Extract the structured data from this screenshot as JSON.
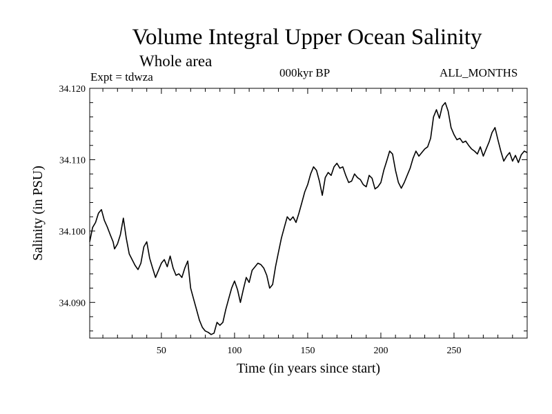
{
  "header": {
    "title": "Volume Integral Upper Ocean Salinity",
    "subtitle": "Whole area",
    "expt": "Expt = tdwza",
    "period": "000kyr BP",
    "months": "ALL_MONTHS"
  },
  "chart_data": {
    "type": "line",
    "title": "Volume Integral Upper Ocean Salinity",
    "subtitle": "Whole area",
    "xlabel": "Time (in years since start)",
    "ylabel": "Salinity (in PSU)",
    "xlim": [
      1,
      300
    ],
    "ylim": [
      34.085,
      34.12
    ],
    "xticks": [
      50,
      100,
      150,
      200,
      250
    ],
    "xtick_labels": [
      "50",
      "100",
      "150",
      "200",
      "250"
    ],
    "yticks": [
      34.09,
      34.1,
      34.11,
      34.12
    ],
    "ytick_labels": [
      "34.090",
      "34.100",
      "34.110",
      "34.120"
    ],
    "grid": false,
    "series": [
      {
        "x": [
          1,
          3,
          5,
          7,
          9,
          11,
          13,
          15,
          17,
          18,
          20,
          22,
          24,
          26,
          28,
          30,
          32,
          34,
          36,
          38,
          40,
          42,
          44,
          46,
          48,
          50,
          52,
          54,
          56,
          58,
          60,
          62,
          64,
          66,
          68,
          70,
          72,
          74,
          76,
          78,
          80,
          82,
          84,
          86,
          88,
          90,
          92,
          94,
          96,
          98,
          100,
          102,
          104,
          106,
          108,
          110,
          112,
          114,
          116,
          118,
          120,
          122,
          124,
          126,
          128,
          130,
          132,
          134,
          136,
          138,
          140,
          142,
          144,
          146,
          148,
          150,
          152,
          154,
          156,
          158,
          160,
          162,
          164,
          166,
          168,
          170,
          172,
          174,
          176,
          178,
          180,
          182,
          184,
          186,
          188,
          190,
          192,
          194,
          196,
          198,
          200,
          202,
          204,
          206,
          208,
          210,
          212,
          214,
          216,
          218,
          220,
          222,
          224,
          226,
          228,
          230,
          232,
          234,
          236,
          238,
          240,
          242,
          244,
          246,
          248,
          250,
          252,
          254,
          256,
          258,
          260,
          262,
          264,
          266,
          268,
          270,
          272,
          274,
          276,
          278,
          280,
          282,
          284,
          286,
          288,
          290,
          292,
          294,
          296,
          298,
          300
        ],
        "values": [
          34.0985,
          34.1005,
          34.1012,
          34.1025,
          34.103,
          34.1015,
          34.1006,
          34.0995,
          34.0985,
          34.0975,
          34.0982,
          34.0995,
          34.1018,
          34.099,
          34.0968,
          34.096,
          34.0952,
          34.0946,
          34.0955,
          34.0978,
          34.0985,
          34.0962,
          34.0948,
          34.0935,
          34.0945,
          34.0955,
          34.096,
          34.095,
          34.0965,
          34.0948,
          34.0938,
          34.094,
          34.0935,
          34.0948,
          34.0958,
          34.092,
          34.0905,
          34.089,
          34.0875,
          34.0865,
          34.086,
          34.0858,
          34.0855,
          34.0857,
          34.0872,
          34.0868,
          34.0872,
          34.089,
          34.0905,
          34.092,
          34.093,
          34.0918,
          34.09,
          34.0918,
          34.0935,
          34.0928,
          34.0945,
          34.095,
          34.0955,
          34.0953,
          34.0948,
          34.0938,
          34.092,
          34.0925,
          34.095,
          34.097,
          34.099,
          34.1005,
          34.102,
          34.1015,
          34.102,
          34.1012,
          34.1025,
          34.104,
          34.1055,
          34.1065,
          34.108,
          34.109,
          34.1085,
          34.107,
          34.105,
          34.1075,
          34.1082,
          34.1078,
          34.109,
          34.1095,
          34.1088,
          34.109,
          34.1078,
          34.1068,
          34.107,
          34.108,
          34.1075,
          34.1072,
          34.1065,
          34.1062,
          34.1078,
          34.1074,
          34.1059,
          34.1062,
          34.1068,
          34.1085,
          34.1098,
          34.1112,
          34.1108,
          34.1085,
          34.1068,
          34.106,
          34.1068,
          34.1078,
          34.1088,
          34.1102,
          34.1112,
          34.1105,
          34.111,
          34.1115,
          34.1118,
          34.113,
          34.116,
          34.117,
          34.1158,
          34.1175,
          34.118,
          34.1168,
          34.1145,
          34.1135,
          34.1128,
          34.113,
          34.1124,
          34.1126,
          34.112,
          34.1115,
          34.1112,
          34.1108,
          34.1118,
          34.1105,
          34.1115,
          34.1125,
          34.1138,
          34.1145,
          34.1128,
          34.1112,
          34.1098,
          34.1105,
          34.111,
          34.1098,
          34.1106,
          34.1096,
          34.1107,
          34.1112,
          34.111
        ]
      }
    ]
  }
}
